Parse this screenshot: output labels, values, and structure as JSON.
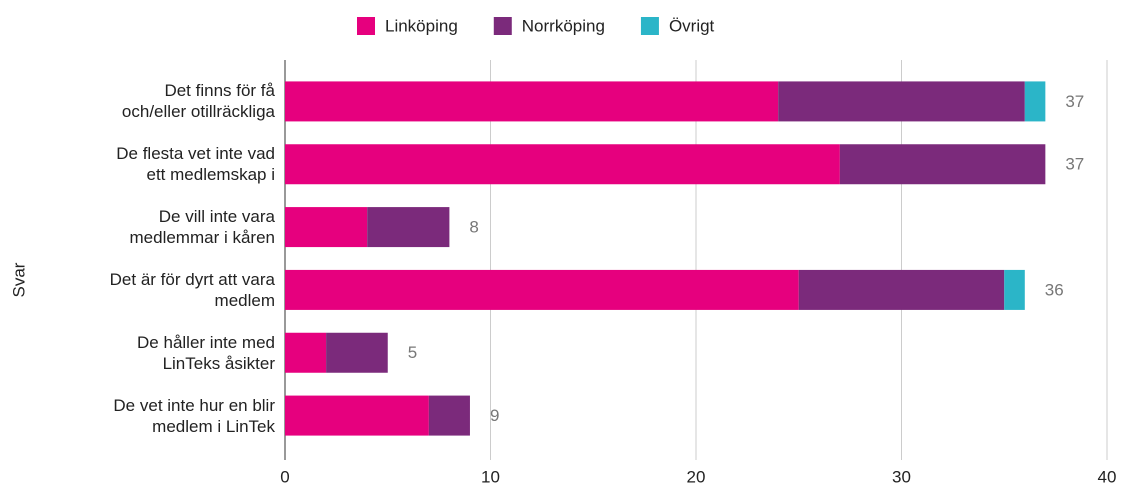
{
  "chart_data": {
    "type": "bar",
    "orientation": "horizontal",
    "stacked": true,
    "y_label": "Svar",
    "categories": [
      "Det finns för få\noch/eller otillräckliga",
      "De flesta vet inte vad\nett medlemskap i",
      "De vill inte vara\nmedlemmar i kåren",
      "Det är för dyrt att vara\nmedlem",
      "De håller inte med\nLinTeks åsikter",
      "De vet inte hur en blir\nmedlem i LinTek"
    ],
    "series": [
      {
        "name": "Linköping",
        "color": "#e6007e",
        "values": [
          24,
          27,
          4,
          25,
          2,
          7
        ]
      },
      {
        "name": "Norrköping",
        "color": "#7b2a7b",
        "values": [
          12,
          10,
          4,
          10,
          3,
          2
        ]
      },
      {
        "name": "Övrigt",
        "color": "#2bb5c8",
        "values": [
          1,
          0,
          0,
          1,
          0,
          0
        ]
      }
    ],
    "totals": [
      37,
      37,
      8,
      36,
      5,
      9
    ],
    "xlim": [
      0,
      40
    ],
    "xticks": [
      0,
      10,
      20,
      30,
      40
    ],
    "grid": true,
    "legend": "top"
  }
}
